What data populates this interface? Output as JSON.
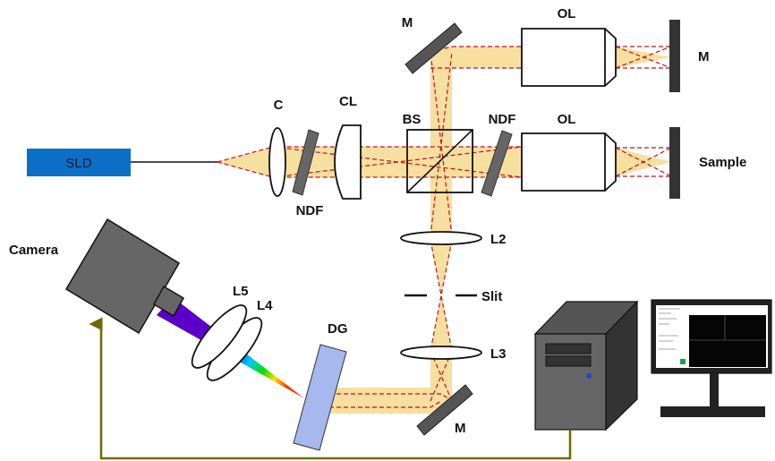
{
  "labels": {
    "sld": "SLD",
    "collimator": "C",
    "ndf_source": "NDF",
    "cylindrical_lens": "CL",
    "beam_splitter": "BS",
    "ndf_sample": "NDF",
    "objective_top": "OL",
    "objective_bottom": "OL",
    "mirror_top_left": "M",
    "mirror_reference": "M",
    "sample": "Sample",
    "lens_l2": "L2",
    "slit": "Slit",
    "lens_l3": "L3",
    "mirror_bottom": "M",
    "grating": "DG",
    "lens_l5": "L5",
    "lens_l4": "L4",
    "camera": "Camera"
  },
  "colors": {
    "beam": "#f7dfa0",
    "ray": "#c0141e",
    "sld_box": "#0b6fc6",
    "dark_gray": "#555555",
    "camera_gray": "#666666",
    "grating": "#a7b8ee",
    "cable": "#6e6a00"
  }
}
